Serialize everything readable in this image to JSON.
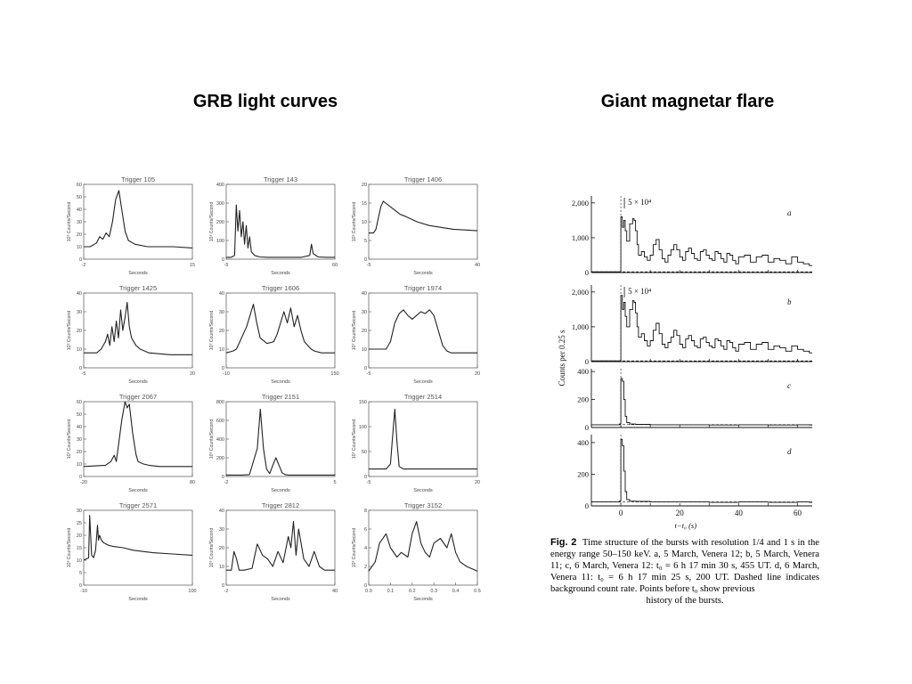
{
  "slide": {
    "left_heading": "GRB light curves",
    "right_heading": "Giant magnetar flare"
  },
  "chart_data": [
    {
      "type": "line",
      "group": "grb",
      "title": "Trigger 105",
      "xlabel": "Seconds",
      "ylabel": "10³ Counts/Second",
      "xlim": [
        -2,
        15
      ],
      "ylim": [
        0,
        60
      ],
      "yticks": [
        0,
        10,
        20,
        30,
        40,
        50,
        60
      ],
      "xticks": [
        -2,
        15
      ],
      "x": [
        -2,
        -1,
        0,
        0.5,
        1,
        1.5,
        2,
        2.5,
        3,
        3.5,
        4,
        4.5,
        5,
        6,
        8,
        10,
        12,
        15
      ],
      "y": [
        10,
        10,
        13,
        18,
        16,
        21,
        18,
        30,
        48,
        55,
        38,
        22,
        15,
        12,
        10,
        10,
        10,
        9
      ]
    },
    {
      "type": "line",
      "group": "grb",
      "title": "Trigger 143",
      "xlabel": "Seconds",
      "ylabel": "10³ Counts/Second",
      "xlim": [
        -5,
        60
      ],
      "ylim": [
        0,
        400
      ],
      "yticks": [
        0,
        100,
        200,
        300,
        400
      ],
      "xticks": [
        -5,
        60
      ],
      "x": [
        -5,
        -2,
        0,
        1,
        2,
        3,
        4,
        5,
        6,
        7,
        8,
        9,
        10,
        12,
        15,
        20,
        30,
        40,
        45,
        46,
        47,
        50,
        55,
        60
      ],
      "y": [
        10,
        10,
        20,
        290,
        150,
        260,
        120,
        200,
        80,
        180,
        60,
        120,
        40,
        20,
        12,
        10,
        10,
        10,
        20,
        80,
        30,
        12,
        10,
        10
      ]
    },
    {
      "type": "line",
      "group": "grb",
      "title": "Trigger 1406",
      "xlabel": "Seconds",
      "ylabel": "10³ Counts/Second",
      "xlim": [
        -5,
        40
      ],
      "ylim": [
        0,
        20
      ],
      "yticks": [
        0,
        5,
        10,
        15,
        20
      ],
      "xticks": [
        -5,
        40
      ],
      "x": [
        -5,
        -3,
        -2,
        -1,
        0,
        1,
        2,
        4,
        6,
        8,
        10,
        15,
        20,
        25,
        30,
        35,
        40
      ],
      "y": [
        7,
        7,
        8,
        11,
        14,
        15.5,
        15,
        14,
        13,
        12,
        11.5,
        10,
        9,
        8.5,
        8,
        7.8,
        7.6
      ]
    },
    {
      "type": "line",
      "group": "grb",
      "title": "Trigger 1425",
      "xlabel": "Seconds",
      "ylabel": "10³ Counts/Second",
      "xlim": [
        -5,
        20
      ],
      "ylim": [
        0,
        40
      ],
      "yticks": [
        0,
        10,
        20,
        30,
        40
      ],
      "xticks": [
        -5,
        20
      ],
      "x": [
        -5,
        -2,
        -1,
        0,
        0.5,
        1,
        1.5,
        2,
        2.5,
        3,
        3.5,
        4,
        4.5,
        5,
        5.5,
        6,
        7,
        8,
        10,
        15,
        20
      ],
      "y": [
        8,
        8,
        10,
        14,
        18,
        12,
        22,
        14,
        25,
        16,
        31,
        20,
        27,
        35,
        22,
        16,
        12,
        10,
        8,
        7,
        7
      ]
    },
    {
      "type": "line",
      "group": "grb",
      "title": "Trigger 1606",
      "xlabel": "Seconds",
      "ylabel": "10³ Counts/Second",
      "xlim": [
        -10,
        150
      ],
      "ylim": [
        0,
        40
      ],
      "yticks": [
        0,
        10,
        20,
        30,
        40
      ],
      "xticks": [
        -10,
        150
      ],
      "x": [
        -10,
        0,
        5,
        10,
        15,
        20,
        25,
        30,
        35,
        40,
        50,
        60,
        65,
        70,
        75,
        80,
        85,
        90,
        95,
        100,
        105,
        110,
        115,
        120,
        130,
        150
      ],
      "y": [
        8,
        9,
        10,
        14,
        18,
        22,
        28,
        34,
        24,
        16,
        13,
        14,
        18,
        24,
        30,
        24,
        32,
        22,
        28,
        20,
        14,
        12,
        10,
        9,
        8,
        8
      ]
    },
    {
      "type": "line",
      "group": "grb",
      "title": "Trigger 1974",
      "xlabel": "Seconds",
      "ylabel": "10³ Counts/Second",
      "xlim": [
        -5,
        20
      ],
      "ylim": [
        0,
        40
      ],
      "yticks": [
        0,
        10,
        20,
        30,
        40
      ],
      "xticks": [
        -5,
        20
      ],
      "x": [
        -5,
        -1,
        0,
        1,
        2,
        3,
        4,
        5,
        6,
        7,
        8,
        9,
        10,
        11,
        12,
        13,
        14,
        16,
        18,
        20
      ],
      "y": [
        10,
        10,
        14,
        24,
        29,
        31,
        28,
        26,
        28,
        30,
        29,
        31,
        28,
        20,
        12,
        9,
        8,
        8,
        8,
        8
      ]
    },
    {
      "type": "line",
      "group": "grb",
      "title": "Trigger 2067",
      "xlabel": "Seconds",
      "ylabel": "10³ Counts/Second",
      "xlim": [
        -20,
        80
      ],
      "ylim": [
        0,
        60
      ],
      "yticks": [
        0,
        10,
        20,
        30,
        40,
        50,
        60
      ],
      "xticks": [
        -20,
        80
      ],
      "x": [
        -20,
        0,
        5,
        8,
        10,
        12,
        15,
        18,
        20,
        22,
        25,
        28,
        30,
        35,
        40,
        50,
        60,
        80
      ],
      "y": [
        8,
        9,
        12,
        17,
        12,
        25,
        45,
        60,
        55,
        58,
        35,
        18,
        12,
        10,
        9,
        8,
        8,
        8
      ]
    },
    {
      "type": "line",
      "group": "grb",
      "title": "Trigger 2151",
      "xlabel": "Seconds",
      "ylabel": "10³ Counts/Second",
      "xlim": [
        -2,
        5
      ],
      "ylim": [
        0,
        800
      ],
      "yticks": [
        0,
        200,
        400,
        600,
        800
      ],
      "xticks": [
        -2,
        5
      ],
      "x": [
        -2,
        -1,
        -0.5,
        0,
        0.2,
        0.4,
        0.6,
        0.8,
        1,
        1.2,
        1.4,
        1.6,
        1.8,
        2,
        3,
        4,
        5
      ],
      "y": [
        15,
        15,
        20,
        300,
        720,
        300,
        80,
        30,
        120,
        200,
        120,
        40,
        20,
        15,
        15,
        15,
        15
      ]
    },
    {
      "type": "line",
      "group": "grb",
      "title": "Trigger 2514",
      "xlabel": "Seconds",
      "ylabel": "10³ Counts/Second",
      "xlim": [
        -5,
        20
      ],
      "ylim": [
        0,
        150
      ],
      "yticks": [
        0,
        50,
        100,
        150
      ],
      "xticks": [
        -5,
        20
      ],
      "x": [
        -5,
        -1,
        0,
        0.5,
        1,
        1.5,
        2,
        3,
        5,
        10,
        15,
        20
      ],
      "y": [
        15,
        15,
        25,
        80,
        135,
        70,
        20,
        15,
        15,
        15,
        15,
        15
      ]
    },
    {
      "type": "line",
      "group": "grb",
      "title": "Trigger 2571",
      "xlabel": "Seconds",
      "ylabel": "10³ Counts/Second",
      "xlim": [
        -10,
        100
      ],
      "ylim": [
        0,
        30
      ],
      "yticks": [
        0,
        5,
        10,
        15,
        20,
        25,
        30
      ],
      "xticks": [
        -10,
        100
      ],
      "x": [
        -10,
        -5,
        -4,
        -3,
        -2,
        0,
        2,
        4,
        5,
        6,
        8,
        10,
        15,
        20,
        30,
        40,
        60,
        80,
        100
      ],
      "y": [
        10,
        11,
        28,
        20,
        12,
        11,
        14,
        24,
        18,
        20,
        18,
        17,
        16,
        15.5,
        15,
        14,
        13,
        12.5,
        12
      ]
    },
    {
      "type": "line",
      "group": "grb",
      "title": "Trigger 2812",
      "xlabel": "Seconds",
      "ylabel": "10³ Counts/Second",
      "xlim": [
        -2,
        40
      ],
      "ylim": [
        0,
        40
      ],
      "yticks": [
        0,
        10,
        20,
        30,
        40
      ],
      "xticks": [
        -2,
        40
      ],
      "x": [
        -2,
        0,
        1,
        2,
        3,
        5,
        8,
        10,
        12,
        14,
        16,
        18,
        20,
        22,
        23,
        24,
        25,
        26,
        28,
        30,
        32,
        34,
        36,
        38,
        40
      ],
      "y": [
        8,
        8,
        18,
        14,
        8,
        8,
        9,
        22,
        16,
        14,
        10,
        18,
        12,
        26,
        20,
        34,
        16,
        30,
        14,
        10,
        18,
        10,
        8,
        8,
        8
      ]
    },
    {
      "type": "line",
      "group": "grb",
      "title": "Trigger 3152",
      "xlabel": "Seconds",
      "ylabel": "10³ Counts/Second",
      "xlim": [
        0,
        0.5
      ],
      "ylim": [
        0,
        8
      ],
      "yticks": [
        0,
        2,
        4,
        6,
        8
      ],
      "xticks": [
        0,
        0.1,
        0.2,
        0.3,
        0.4,
        0.5
      ],
      "xticklabels": [
        "0.0",
        "0.1",
        "0.2",
        "0.3",
        "0.4",
        "0.5"
      ],
      "x": [
        0,
        0.03,
        0.05,
        0.08,
        0.1,
        0.13,
        0.15,
        0.18,
        0.2,
        0.22,
        0.24,
        0.26,
        0.28,
        0.3,
        0.33,
        0.36,
        0.38,
        0.4,
        0.42,
        0.45,
        0.5
      ],
      "y": [
        1.5,
        2.5,
        4.5,
        5.5,
        4,
        3,
        3.5,
        3,
        5.5,
        6.8,
        4.5,
        3.5,
        3,
        4.5,
        5,
        4,
        5.5,
        3.5,
        2.5,
        2,
        1.5
      ]
    },
    {
      "type": "line",
      "group": "flare",
      "panel_label": "a",
      "annotation": "5 × 10⁴",
      "xlim": [
        -10,
        65
      ],
      "ylim": [
        0,
        2200
      ],
      "yticks": [
        0,
        1000,
        2000
      ],
      "yticklabels": [
        "0",
        "1,000",
        "2,000"
      ],
      "x": [
        -10,
        -1,
        0,
        0.5,
        1,
        1.5,
        2,
        3,
        4,
        4.5,
        5,
        5.5,
        6,
        7,
        8,
        9,
        10,
        11,
        12,
        13,
        14,
        15,
        16,
        17,
        18,
        19,
        20,
        21,
        22,
        23,
        24,
        25,
        26,
        27,
        28,
        29,
        30,
        31,
        32,
        33,
        34,
        35,
        36,
        37,
        38,
        39,
        40,
        42,
        44,
        46,
        48,
        50,
        52,
        54,
        56,
        58,
        60,
        62,
        64
      ],
      "y": [
        20,
        20,
        1600,
        1300,
        1500,
        1200,
        900,
        1400,
        1550,
        1500,
        1200,
        800,
        500,
        600,
        450,
        350,
        500,
        800,
        950,
        650,
        400,
        300,
        500,
        650,
        800,
        650,
        450,
        350,
        600,
        700,
        550,
        400,
        350,
        600,
        650,
        500,
        400,
        350,
        600,
        550,
        400,
        300,
        550,
        500,
        350,
        250,
        450,
        500,
        300,
        450,
        500,
        300,
        400,
        350,
        250,
        450,
        300,
        250,
        200
      ]
    },
    {
      "type": "line",
      "group": "flare",
      "panel_label": "b",
      "annotation": "5 × 10⁴",
      "xlim": [
        -10,
        65
      ],
      "ylim": [
        0,
        2200
      ],
      "yticks": [
        0,
        1000,
        2000
      ],
      "yticklabels": [
        "0",
        "1,000",
        "2,000"
      ],
      "x": [
        -10,
        -1,
        0,
        0.5,
        1,
        1.5,
        2,
        3,
        4,
        4.5,
        5,
        5.5,
        6,
        7,
        8,
        9,
        10,
        11,
        12,
        13,
        14,
        15,
        16,
        17,
        18,
        19,
        20,
        21,
        22,
        23,
        24,
        25,
        26,
        27,
        28,
        29,
        30,
        31,
        32,
        33,
        34,
        35,
        36,
        37,
        38,
        39,
        40,
        42,
        44,
        46,
        48,
        50,
        52,
        54,
        56,
        58,
        60,
        62,
        64
      ],
      "y": [
        20,
        20,
        1900,
        1500,
        1700,
        1300,
        1000,
        1500,
        1750,
        1700,
        1400,
        1000,
        700,
        800,
        600,
        450,
        600,
        900,
        1100,
        800,
        500,
        400,
        550,
        700,
        900,
        750,
        500,
        400,
        650,
        750,
        600,
        450,
        400,
        650,
        700,
        550,
        450,
        400,
        650,
        600,
        450,
        350,
        600,
        550,
        400,
        300,
        500,
        550,
        350,
        500,
        550,
        350,
        450,
        400,
        300,
        450,
        350,
        300,
        250
      ]
    },
    {
      "type": "line",
      "group": "flare",
      "panel_label": "c",
      "xlim": [
        -10,
        65
      ],
      "ylim": [
        0,
        420
      ],
      "yticks": [
        0,
        200,
        400
      ],
      "yticklabels": [
        "0",
        "200",
        "400"
      ],
      "x": [
        -10,
        -1,
        -0.5,
        0,
        0.5,
        1,
        1.5,
        2,
        3,
        5,
        10,
        20,
        30,
        40,
        50,
        60,
        64
      ],
      "y": [
        20,
        20,
        25,
        350,
        330,
        200,
        80,
        35,
        25,
        22,
        20,
        20,
        18,
        20,
        18,
        20,
        18
      ]
    },
    {
      "type": "line",
      "group": "flare",
      "panel_label": "d",
      "xlabel": "t−t₀ (s)",
      "xlim": [
        -10,
        65
      ],
      "ylim": [
        0,
        450
      ],
      "yticks": [
        0,
        200,
        400
      ],
      "yticklabels": [
        "0",
        "200",
        "400"
      ],
      "xticks": [
        0,
        20,
        40,
        60
      ],
      "x": [
        -10,
        -1,
        -0.5,
        0,
        0.5,
        1,
        1.5,
        2,
        3,
        5,
        10,
        20,
        30,
        40,
        50,
        60,
        64
      ],
      "y": [
        25,
        25,
        30,
        420,
        380,
        220,
        90,
        40,
        30,
        28,
        25,
        25,
        22,
        25,
        22,
        25,
        22
      ]
    }
  ],
  "flare": {
    "ylabel": "Counts  per 0.25 s"
  },
  "caption": {
    "fig_label": "Fig. 2",
    "body": "Time structure of the bursts with resolution 1/4 and 1 s in the energy range 50–150 keV. a, 5 March, Venera 12; b, 5 March, Venera 11; c, 6 March, Venera 12: t₀ = 6 h 17 min 30 s, 455 UT. d, 6 March, Venera 11: t₀ = 6 h 17 min 25 s, 200 UT. Dashed line indicates background count rate. Points before t₀ show previous",
    "last_line": "history of the bursts."
  }
}
